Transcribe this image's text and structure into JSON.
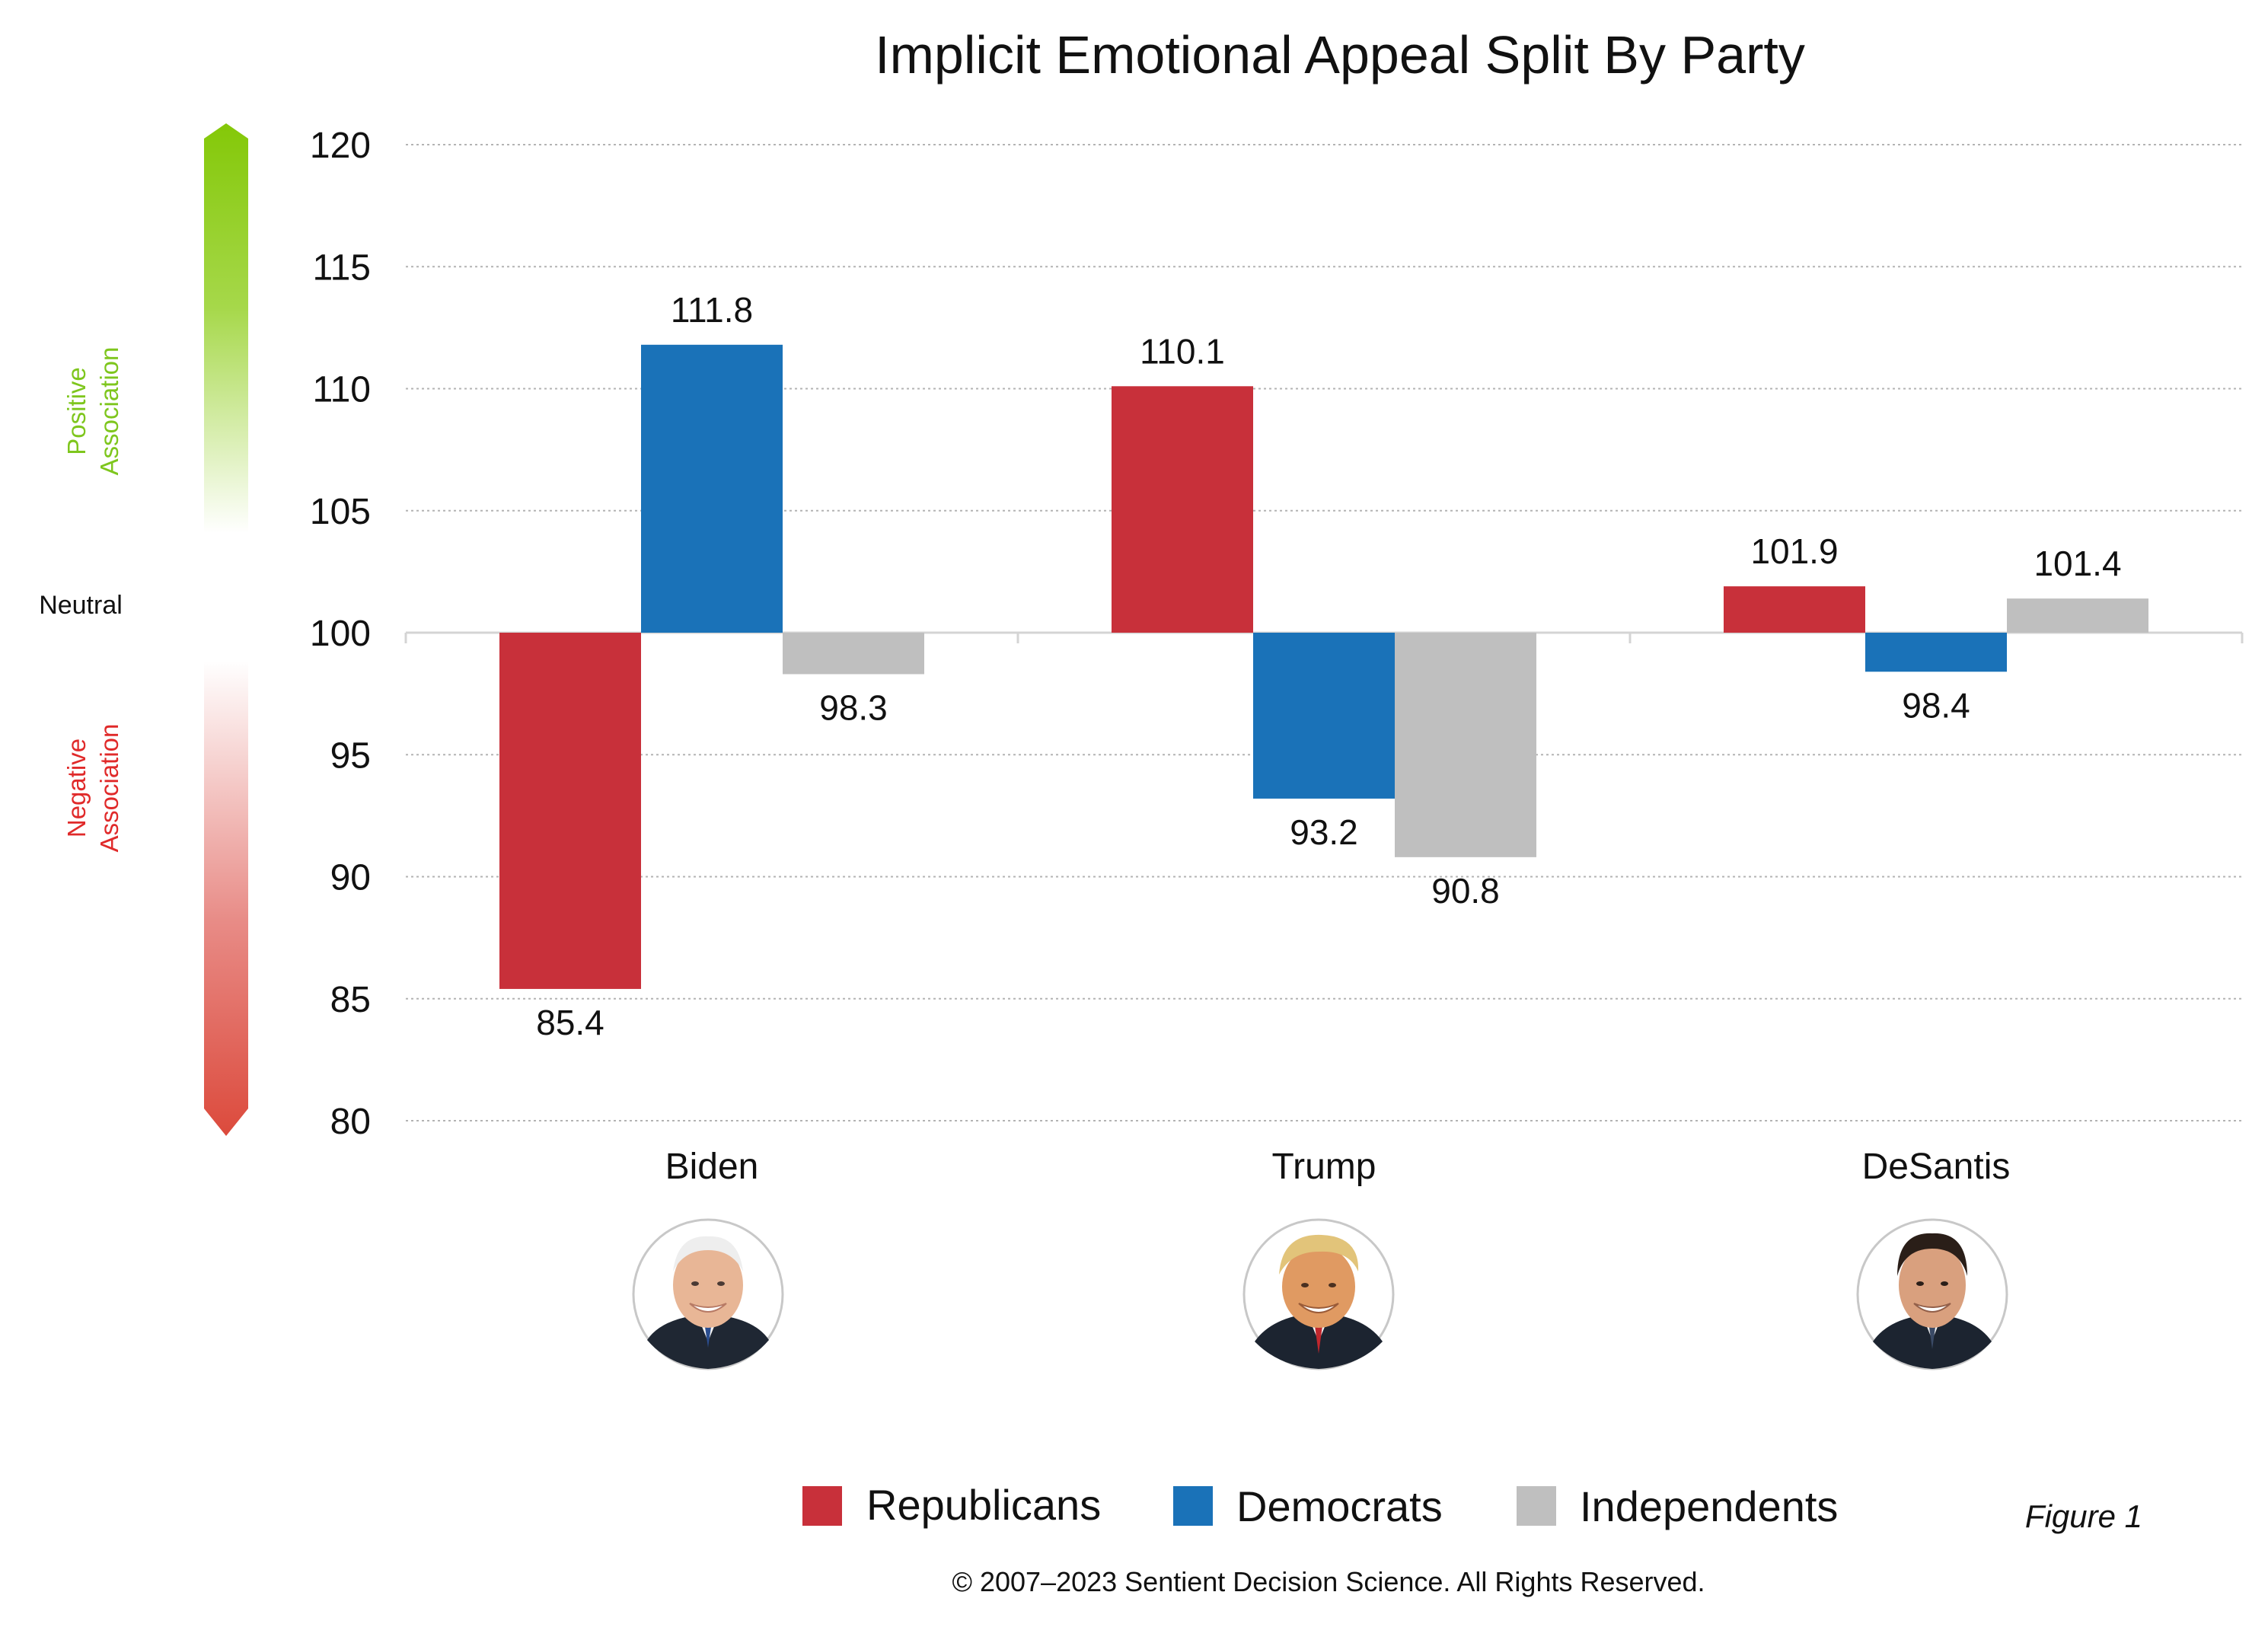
{
  "colors": {
    "republicans": "#c8303a",
    "democrats": "#1a72b8",
    "independents": "#bfbfbf",
    "positive": "#7ec61d",
    "negative": "#e02a2a"
  },
  "scale": {
    "positive_line1": "Positive",
    "positive_line2": "Association",
    "neutral": "Neutral",
    "negative_line1": "Negative",
    "negative_line2": "Association"
  },
  "legend": {
    "republicans": "Republicans",
    "democrats": "Democrats",
    "independents": "Independents"
  },
  "figure_label": "Figure 1",
  "copyright": "© 2007–2023 Sentient Decision Science. All Rights Reserved.",
  "chart_data": {
    "type": "bar",
    "title": "Implicit Emotional Appeal Split By Party",
    "categories": [
      "Biden",
      "Trump",
      "DeSantis"
    ],
    "baseline": 100,
    "ylim": [
      80,
      120
    ],
    "yticks": [
      80,
      85,
      90,
      95,
      100,
      105,
      110,
      115,
      120
    ],
    "grid": true,
    "legend_position": "bottom",
    "series": [
      {
        "name": "Republicans",
        "color": "#c8303a",
        "values": [
          85.4,
          110.1,
          101.9
        ]
      },
      {
        "name": "Democrats",
        "color": "#1a72b8",
        "values": [
          111.8,
          93.2,
          98.4
        ]
      },
      {
        "name": "Independents",
        "color": "#bfbfbf",
        "values": [
          98.3,
          90.8,
          101.4
        ]
      }
    ]
  }
}
